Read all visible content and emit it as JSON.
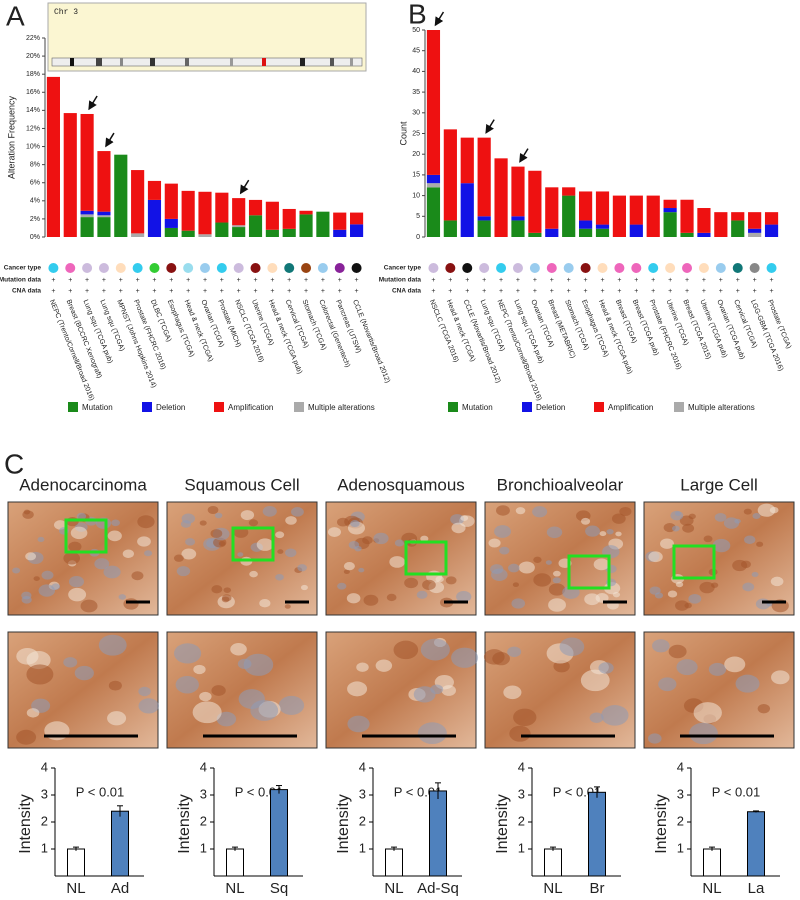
{
  "panels": [
    "A",
    "B",
    "C"
  ],
  "ideogram_label": "Chr 3",
  "chart_data": [
    {
      "type": "stacked_bar",
      "ylabel": "Alteration Frequency",
      "categories": [
        "NEPC (Trento/Cornell/Broad 2016)",
        "Breast (BCCRC Xenograft)",
        "Lung squ (TCGA pub)",
        "Lung squ (TCGA)",
        "MPNST (Johns Hopkins 2014)",
        "Prostate (FHCRC 2016)",
        "DLBC (TCGA)",
        "Esophagus (TCGA)",
        "Head & neck (TCGA)",
        "Ovarian (TCGA)",
        "Prostate (MICH)",
        "NSCLC (TCGA 2016)",
        "Uterine (TCGA)",
        "Head & neck (TCGA pub)",
        "Cervical (TCGA)",
        "Stomach (TCGA)",
        "Colorectal (Genentech)",
        "Pancreas (UTSW)",
        "CCLE (Novartis/Broad 2012)"
      ],
      "series": [
        {
          "name": "Mutation",
          "color": "#1a8a1a",
          "values": [
            0,
            0,
            2.2,
            2.2,
            9.1,
            0,
            0,
            1.0,
            0.7,
            0,
            1.6,
            1.1,
            2.4,
            0.8,
            0.9,
            2.5,
            2.8,
            0,
            0
          ]
        },
        {
          "name": "Deletion",
          "color": "#1212e6",
          "values": [
            0,
            0,
            0.4,
            0.4,
            0,
            0,
            4.1,
            1.0,
            0,
            0,
            0,
            0,
            0,
            0,
            0,
            0,
            0,
            0.8,
            1.4
          ]
        },
        {
          "name": "Amplification",
          "color": "#ee1111",
          "values": [
            17.7,
            13.7,
            10.7,
            6.7,
            0,
            7.0,
            2.1,
            3.9,
            4.4,
            4.7,
            3.3,
            3.0,
            1.7,
            3.1,
            2.2,
            0.4,
            0,
            1.9,
            1.3
          ]
        },
        {
          "name": "Multiple alterations",
          "color": "#aaaaaa",
          "values": [
            0,
            0,
            0.3,
            0.2,
            0,
            0.4,
            0,
            0,
            0,
            0.3,
            0,
            0.2,
            0,
            0,
            0,
            0,
            0,
            0,
            0
          ]
        }
      ],
      "ylim": [
        0,
        22
      ],
      "yticks": [
        {
          "value": 0,
          "label": "0%"
        },
        {
          "value": 2,
          "label": "2%"
        },
        {
          "value": 4,
          "label": "4%"
        },
        {
          "value": 6,
          "label": "6%"
        },
        {
          "value": 8,
          "label": "8%"
        },
        {
          "value": 10,
          "label": "10%"
        },
        {
          "value": 12,
          "label": "12%"
        },
        {
          "value": 14,
          "label": "14%"
        },
        {
          "value": 16,
          "label": "16%"
        },
        {
          "value": 18,
          "label": "18%"
        },
        {
          "value": 20,
          "label": "20%"
        },
        {
          "value": 22,
          "label": "22%"
        }
      ],
      "row_labels": [
        "Cancer type",
        "Mutation data",
        "CNA data"
      ],
      "cancer_type_colors": [
        "#33ccee",
        "#ee66bb",
        "#ccbbdd",
        "#ccbbdd",
        "#ffddbb",
        "#33ccee",
        "#33cc33",
        "#881111",
        "#99ddee",
        "#99ccee",
        "#33ccee",
        "#ccbbdd",
        "#881111",
        "#ffddbb",
        "#117777",
        "#994411",
        "#99ccee",
        "#882299",
        "#111111"
      ],
      "mutation_data": [
        "+",
        "+",
        "+",
        "+",
        "+",
        "+",
        "+",
        "+",
        "+",
        "+",
        "+",
        "+",
        "+",
        "+",
        "+",
        "+",
        "+",
        "+",
        "+"
      ],
      "cna_data": [
        "+",
        "+",
        "+",
        "+",
        "+",
        "+",
        "+",
        "+",
        "+",
        "+",
        "+",
        "+",
        "+",
        "+",
        "+",
        "+",
        "+",
        "+",
        "+"
      ]
    },
    {
      "type": "stacked_bar",
      "ylabel": "Count",
      "categories": [
        "NSCLC (TCGA 2016)",
        "Head & neck (TCGA)",
        "CCLE (Novartis/Broad 2012)",
        "Lung squ (TCGA)",
        "NEPC (Trento/Cornell/Broad 2016)",
        "Lung squ (TCGA pub)",
        "Ovarian (TCGA)",
        "Breast (METABRIC)",
        "Stomach (TCGA)",
        "Esophagus (TCGA)",
        "Head & neck (TCGA pub)",
        "Breast (TCGA)",
        "Breast (TCGA pub)",
        "Prostate (FHCRC 2016)",
        "Uterine (TCGA)",
        "Breast (TCGA 2015)",
        "Uterine (TCGA pub)",
        "Ovarian (TCGA pub)",
        "Cervical (TCGA)",
        "LGG-GBM (TCGA 2016)",
        "Prostate (TCGA)"
      ],
      "series": [
        {
          "name": "Mutation",
          "color": "#1a8a1a",
          "values": [
            12,
            4,
            0,
            4,
            0,
            4,
            1,
            0,
            10,
            2,
            2,
            0,
            0,
            0,
            6,
            1,
            0,
            0,
            4,
            0,
            0
          ]
        },
        {
          "name": "Deletion",
          "color": "#1212e6",
          "values": [
            2,
            0,
            13,
            1,
            0,
            1,
            0,
            2,
            0,
            2,
            1,
            0,
            3,
            0,
            1,
            0,
            1,
            0,
            0,
            1,
            3
          ]
        },
        {
          "name": "Amplification",
          "color": "#ee1111",
          "values": [
            35,
            22,
            11,
            19,
            19,
            12,
            15,
            10,
            2,
            7,
            8,
            10,
            7,
            10,
            2,
            8,
            6,
            6,
            2,
            4,
            3
          ]
        },
        {
          "name": "Multiple alterations",
          "color": "#aaaaaa",
          "values": [
            1,
            0,
            0,
            0,
            0,
            0,
            0,
            0,
            0,
            0,
            0,
            0,
            0,
            0,
            0,
            0,
            0,
            0,
            0,
            1,
            0
          ]
        }
      ],
      "ylim": [
        0,
        50
      ],
      "yticks": [
        0,
        5,
        10,
        15,
        20,
        25,
        30,
        35,
        40,
        45,
        50
      ],
      "row_labels": [
        "Cancer type",
        "Mutation data",
        "CNA data"
      ],
      "cancer_type_colors": [
        "#ccbbdd",
        "#881111",
        "#111111",
        "#ccbbdd",
        "#33ccee",
        "#ccbbdd",
        "#99ccee",
        "#ee66bb",
        "#99ccee",
        "#881111",
        "#ffddbb",
        "#ee66bb",
        "#ee66bb",
        "#33ccee",
        "#ffddbb",
        "#ee66bb",
        "#ffddbb",
        "#99ccee",
        "#117777",
        "#888888",
        "#33ccee"
      ],
      "mutation_data": [
        "+",
        "+",
        "+",
        "+",
        "+",
        "+",
        "+",
        "+",
        "+",
        "+",
        "+",
        "+",
        "+",
        "+",
        "+",
        "+",
        "+",
        "+",
        "+",
        "+",
        "+"
      ],
      "cna_data": [
        "+",
        "+",
        "+",
        "+",
        "+",
        "+",
        "+",
        "+",
        "+",
        "+",
        "+",
        "+",
        "+",
        "+",
        "+",
        "+",
        "+",
        "+",
        "+",
        "+",
        "+"
      ]
    },
    {
      "type": "bar",
      "title": "Adenocarcinoma",
      "ylabel": "Intensity",
      "annotation": "P < 0.01",
      "categories": [
        "NL",
        "Ad"
      ],
      "values": [
        1,
        2.4
      ],
      "errors": [
        0.07,
        0.2
      ],
      "colors": [
        "#ffffff",
        "#4f81bd"
      ],
      "ylim": [
        0,
        4
      ],
      "yticks": [
        1,
        2,
        3,
        4
      ]
    },
    {
      "type": "bar",
      "title": "Squamous Cell",
      "ylabel": "Intensity",
      "annotation": "P < 0.01",
      "categories": [
        "NL",
        "Sq"
      ],
      "values": [
        1,
        3.2
      ],
      "errors": [
        0.07,
        0.15
      ],
      "colors": [
        "#ffffff",
        "#4f81bd"
      ],
      "ylim": [
        0,
        4
      ],
      "yticks": [
        1,
        2,
        3,
        4
      ]
    },
    {
      "type": "bar",
      "title": "Adenosquamous",
      "ylabel": "Intensity",
      "annotation": "P < 0.01",
      "categories": [
        "NL",
        "Ad-Sq"
      ],
      "values": [
        1,
        3.15
      ],
      "errors": [
        0.07,
        0.3
      ],
      "colors": [
        "#ffffff",
        "#4f81bd"
      ],
      "ylim": [
        0,
        4
      ],
      "yticks": [
        1,
        2,
        3,
        4
      ]
    },
    {
      "type": "bar",
      "title": "Bronchioalveolar",
      "ylabel": "Intensity",
      "annotation": "P < 0.01",
      "categories": [
        "NL",
        "Br"
      ],
      "values": [
        1,
        3.1
      ],
      "errors": [
        0.07,
        0.2
      ],
      "colors": [
        "#ffffff",
        "#4f81bd"
      ],
      "ylim": [
        0,
        4
      ],
      "yticks": [
        1,
        2,
        3,
        4
      ]
    },
    {
      "type": "bar",
      "title": "Large Cell",
      "ylabel": "Intensity",
      "annotation": "P < 0.01",
      "categories": [
        "NL",
        "La"
      ],
      "values": [
        1,
        2.38
      ],
      "errors": [
        0.07,
        0.03
      ],
      "colors": [
        "#ffffff",
        "#4f81bd"
      ],
      "ylim": [
        0,
        4
      ],
      "yticks": [
        1,
        2,
        3,
        4
      ]
    }
  ]
}
